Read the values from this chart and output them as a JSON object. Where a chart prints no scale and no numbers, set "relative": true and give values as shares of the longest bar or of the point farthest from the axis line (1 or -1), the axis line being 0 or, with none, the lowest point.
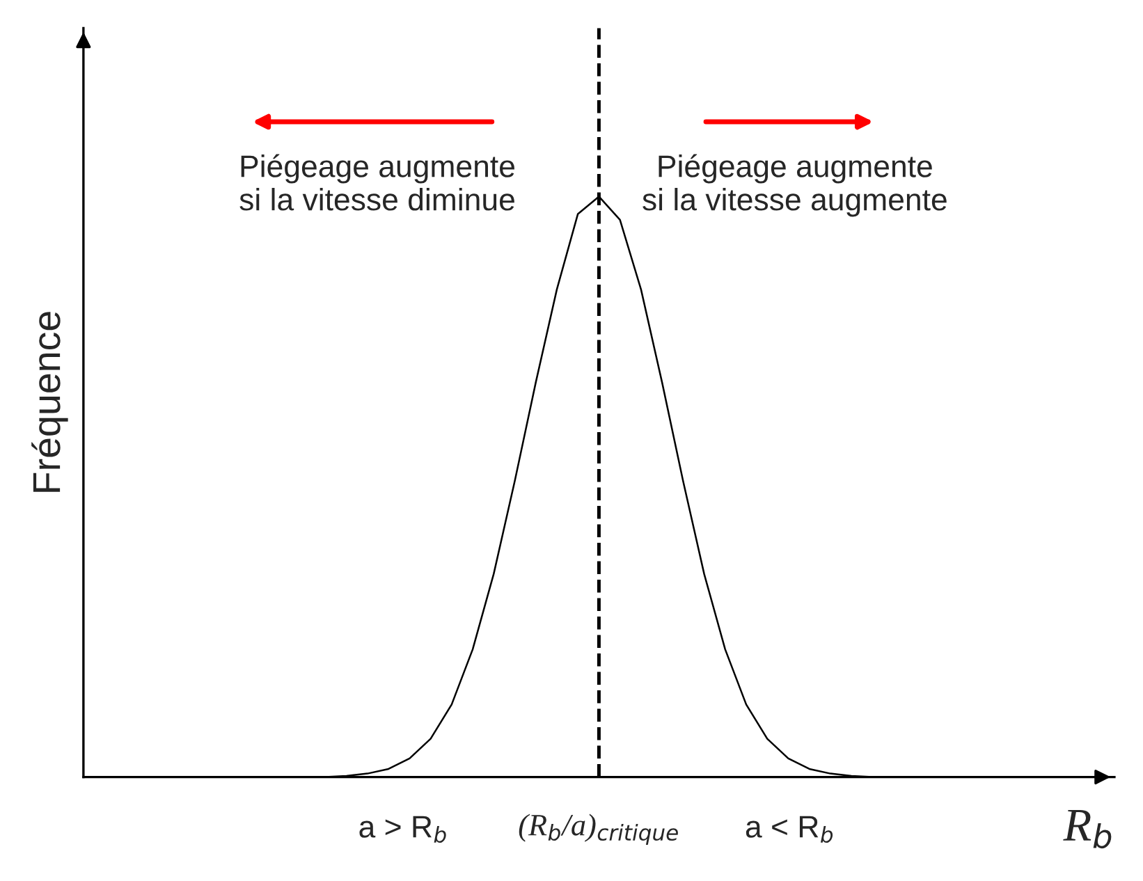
{
  "chart_data": {
    "type": "line",
    "relative": true,
    "ylabel": "Fréquence",
    "xlabel": "R$_{b}$",
    "categories": [
      null,
      null,
      null,
      null,
      null,
      null,
      null,
      null,
      null,
      null,
      null,
      null,
      null,
      null,
      null,
      null,
      null,
      null,
      null,
      null,
      null,
      null,
      null,
      null,
      null,
      null,
      null,
      null,
      null,
      null,
      null,
      null,
      null,
      null,
      null,
      null,
      null,
      null,
      null,
      null,
      null,
      null,
      null,
      null,
      null,
      null,
      null,
      null,
      null
    ],
    "series": [
      {
        "color": "#000000",
        "values": [
          0,
          0,
          0,
          0,
          0,
          0,
          0,
          0,
          0,
          0,
          0,
          0,
          0.002,
          0.006,
          0.014,
          0.032,
          0.066,
          0.125,
          0.22,
          0.35,
          0.51,
          0.68,
          0.84,
          0.97,
          1,
          0.96,
          0.84,
          0.68,
          0.51,
          0.35,
          0.22,
          0.125,
          0.066,
          0.032,
          0.014,
          0.006,
          0.002,
          0,
          0,
          0,
          0,
          0,
          0,
          0,
          0,
          0,
          0,
          0,
          0
        ]
      }
    ],
    "annotations": [
      "Piégeage augmente\nsi la vitesse diminue",
      "Piégeage augmente\nsi la vitesse augmente",
      "a > R$_{b}$",
      "a < R$_{b}$",
      "(R$_{b}$/a)$_{critique}$"
    ],
    "grid": false,
    "legend": false,
    "marker": "none",
    "line_style": "solid"
  }
}
